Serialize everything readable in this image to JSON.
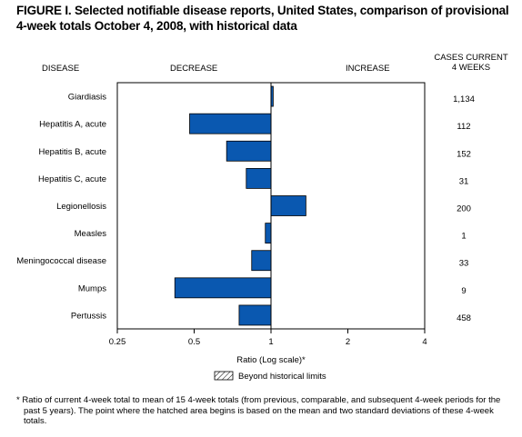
{
  "figure": {
    "title": "FIGURE I. Selected notifiable disease reports, United States, comparison of provisional 4-week totals October 4, 2008, with historical data"
  },
  "headers": {
    "disease": "DISEASE",
    "decrease": "DECREASE",
    "increase": "INCREASE",
    "cases_line1": "CASES CURRENT",
    "cases_line2": "4 WEEKS"
  },
  "legend": {
    "beyond_limits": "Beyond historical limits"
  },
  "footnote": "* Ratio of current 4-week total to mean of 15 4-week totals (from previous, comparable, and subsequent 4-week periods for the past 5 years). The point where the hatched area begins is based on the mean and two standard deviations of these 4-week totals.",
  "chart_data": {
    "type": "bar",
    "orientation": "horizontal",
    "xscale": "log2",
    "baseline": 1,
    "xlabel": "Ratio (Log scale)*",
    "xticks": [
      0.25,
      0.5,
      1,
      2,
      4
    ],
    "xtick_labels": [
      "0.25",
      "0.5",
      "1",
      "2",
      "4"
    ],
    "xlim": [
      0.25,
      4
    ],
    "categories": [
      "Giardiasis",
      "Hepatitis A, acute",
      "Hepatitis B, acute",
      "Hepatitis C, acute",
      "Legionellosis",
      "Measles",
      "Meningococcal disease",
      "Mumps",
      "Pertussis"
    ],
    "values": [
      1.02,
      0.48,
      0.67,
      0.8,
      1.37,
      0.95,
      0.84,
      0.42,
      0.75
    ],
    "cases_current_4_weeks": [
      "1,134",
      "112",
      "152",
      "31",
      "200",
      "1",
      "33",
      "9",
      "458"
    ],
    "bar_color": "#0a58b0",
    "beyond_historical_limits": [
      false,
      false,
      false,
      false,
      false,
      false,
      false,
      false,
      false
    ]
  }
}
